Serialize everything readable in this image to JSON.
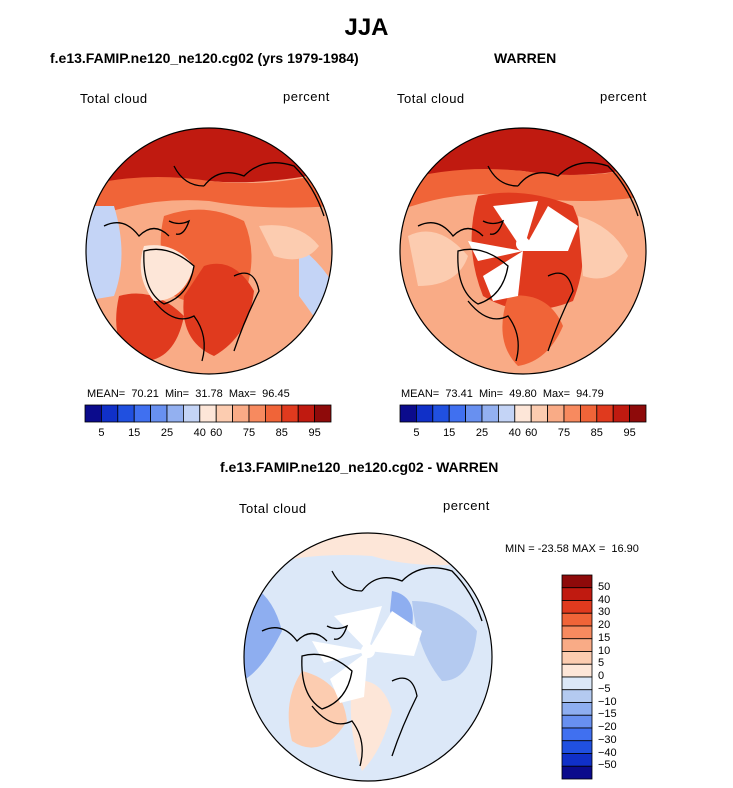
{
  "title": "JJA",
  "colors": {
    "levels_full": [
      "#0b0b8c",
      "#1030c8",
      "#2050e0",
      "#4070f0",
      "#6890f0",
      "#93b0f0",
      "#c4d4f6",
      "#fde6d8",
      "#fcccb0",
      "#f9ab86",
      "#f78a5f",
      "#f06438",
      "#e03a1e",
      "#c01a10",
      "#8e0a0a"
    ],
    "diff_scale": [
      "#8e0a0a",
      "#c01a10",
      "#e03a1e",
      "#f06438",
      "#f78a5f",
      "#f9ab86",
      "#fcccb0",
      "#fde6d8",
      "#dce8f8",
      "#b4caf0",
      "#8eaef0",
      "#6890f0",
      "#4070f0",
      "#2050e0",
      "#1030c8",
      "#0b0b8c"
    ]
  },
  "panels": [
    {
      "title": "f.e13.FAMIP.ne120_ne120.cg02 (yrs 1979-1984)",
      "left_label": "Total cloud",
      "right_label": "percent",
      "stats": "MEAN=  70.21  Min=  31.78  Max=  96.45",
      "colorbar_ticks": [
        "5",
        "15",
        "25",
        "40",
        "60",
        "75",
        "85",
        "95"
      ]
    },
    {
      "title": "WARREN",
      "left_label": "Total cloud",
      "right_label": "percent",
      "stats": "MEAN=  73.41  Min=  49.80  Max=  94.79",
      "colorbar_ticks": [
        "5",
        "15",
        "25",
        "40",
        "60",
        "75",
        "85",
        "95"
      ]
    },
    {
      "title": "f.e13.FAMIP.ne120_ne120.cg02 - WARREN",
      "left_label": "Total cloud",
      "right_label": "percent",
      "stats": "MIN = -23.58 MAX =  16.90",
      "colorbar_ticks": [
        "50",
        "40",
        "30",
        "20",
        "15",
        "10",
        "5",
        "0",
        "−5",
        "−10",
        "−15",
        "−20",
        "−30",
        "−40",
        "−50"
      ]
    }
  ],
  "chart_data": [
    {
      "type": "heatmap",
      "projection": "north polar stereographic",
      "title": "f.e13.FAMIP.ne120_ne120.cg02 (yrs 1979-1984)",
      "variable": "Total cloud",
      "units": "percent",
      "mean": 70.21,
      "min": 31.78,
      "max": 96.45,
      "contour_levels": [
        5,
        10,
        15,
        20,
        25,
        30,
        40,
        50,
        60,
        70,
        75,
        80,
        85,
        90,
        95
      ]
    },
    {
      "type": "heatmap",
      "projection": "north polar stereographic",
      "title": "WARREN",
      "variable": "Total cloud",
      "units": "percent",
      "mean": 73.41,
      "min": 49.8,
      "max": 94.79,
      "contour_levels": [
        5,
        10,
        15,
        20,
        25,
        30,
        40,
        50,
        60,
        70,
        75,
        80,
        85,
        90,
        95
      ]
    },
    {
      "type": "heatmap",
      "projection": "north polar stereographic",
      "title": "f.e13.FAMIP.ne120_ne120.cg02 - WARREN",
      "variable": "Total cloud",
      "units": "percent",
      "min": -23.58,
      "max": 16.9,
      "contour_levels": [
        -50,
        -40,
        -30,
        -20,
        -15,
        -10,
        -5,
        0,
        5,
        10,
        15,
        20,
        30,
        40,
        50
      ]
    }
  ]
}
